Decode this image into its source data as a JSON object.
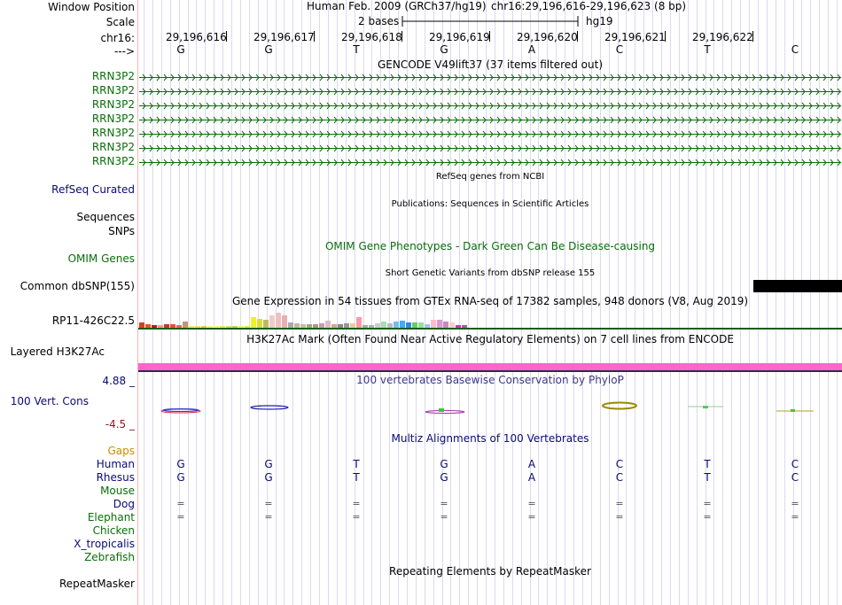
{
  "header": {
    "window_position_label": "Window Position",
    "scale_label": "Scale",
    "chrom_label": "chr16:",
    "strand_label": "--->",
    "assembly_title": "Human Feb. 2009 (GRCh37/hg19)",
    "position_text": "chr16:29,196,616-29,196,623 (8 bp)",
    "scale_text": "2 bases",
    "scale_db": "hg19",
    "coordinates": [
      "29,196,616",
      "29,196,617",
      "29,196,618",
      "29,196,619",
      "29,196,620",
      "29,196,621",
      "29,196,622"
    ]
  },
  "sequence": [
    "G",
    "G",
    "T",
    "G",
    "A",
    "C",
    "T",
    "C"
  ],
  "tracks": {
    "gencode": {
      "title": "GENCODE V49lift37 (37 items filtered out)",
      "items": [
        "RRN3P2",
        "RRN3P2",
        "RRN3P2",
        "RRN3P2",
        "RRN3P2",
        "RRN3P2",
        "RRN3P2"
      ],
      "color": "#0a6e0a"
    },
    "refseq": {
      "label": "RefSeq Curated",
      "title": "RefSeq genes from NCBI"
    },
    "publications": {
      "label_line1": "Sequences",
      "label_line2": "SNPs",
      "title": "Publications: Sequences in Scientific Articles"
    },
    "omim": {
      "label": "OMIM Genes",
      "title": "OMIM Gene Phenotypes - Dark Green Can Be Disease-causing"
    },
    "dbsnp": {
      "label": "Common dbSNP(155)",
      "title": "Short Genetic Variants from dbSNP release 155"
    },
    "gtex": {
      "label": "RP11-426C22.5",
      "title": "Gene Expression in 54 tissues from GTEx RNA-seq of 17382 samples, 948 donors (V8, Aug 2019)"
    },
    "h3k27ac": {
      "label": "Layered H3K27Ac",
      "title": "H3K27Ac Mark (Often Found Near Active Regulatory Elements) on 7 cell lines from ENCODE"
    },
    "conservation": {
      "label": "100 Vert. Cons",
      "max": "4.88 _",
      "min": "-4.5 _",
      "title": "100 vertebrates Basewise Conservation by PhyloP"
    },
    "multiz": {
      "title": "Multiz Alignments of 100 Vertebrates",
      "gaps_label": "Gaps",
      "species": [
        {
          "name": "Human",
          "color": "#0a0a78",
          "row": [
            "G",
            "G",
            "T",
            "G",
            "A",
            "C",
            "T",
            "C"
          ]
        },
        {
          "name": "Rhesus",
          "color": "#0a0a78",
          "row": [
            "G",
            "G",
            "T",
            "G",
            "A",
            "C",
            "T",
            "C"
          ]
        },
        {
          "name": "Mouse",
          "color": "#0a6e0a",
          "row": []
        },
        {
          "name": "Dog",
          "color": "#0a0a78",
          "row": [
            "=",
            "=",
            "=",
            "=",
            "=",
            "=",
            "=",
            "="
          ]
        },
        {
          "name": "Elephant",
          "color": "#0a6e0a",
          "row": [
            "=",
            "=",
            "=",
            "=",
            "=",
            "=",
            "=",
            "="
          ]
        },
        {
          "name": "Chicken",
          "color": "#0a6e0a",
          "row": []
        },
        {
          "name": "X_tropicalis",
          "color": "#0a0a78",
          "row": []
        },
        {
          "name": "Zebrafish",
          "color": "#0a6e0a",
          "row": []
        }
      ]
    },
    "repeatmasker": {
      "label": "RepeatMasker",
      "title": "Repeating Elements by RepeatMasker"
    }
  },
  "colors": {
    "gene_green": "#0a6e0a",
    "navy": "#0a0a78",
    "gaps_orange": "#d08a00",
    "h3k27ac_pink": "#ff66cc",
    "cons_max": "#0a0a78",
    "cons_min": "#8b1a1a"
  }
}
